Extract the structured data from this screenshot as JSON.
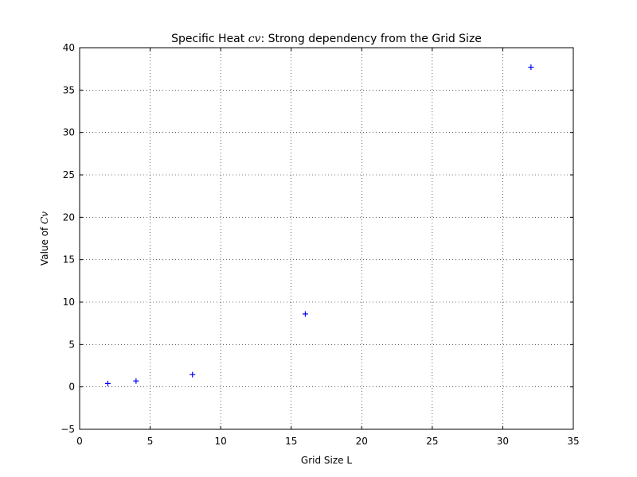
{
  "chart_data": {
    "type": "scatter",
    "title": {
      "prefix": "Specific Heat ",
      "math": "cv",
      "suffix": ": Strong dependency from the Grid Size"
    },
    "xlabel": "Grid Size L",
    "ylabel": {
      "prefix": "Value of ",
      "math": "Cv"
    },
    "xlim": [
      0,
      35
    ],
    "ylim": [
      -5,
      40
    ],
    "xticks": [
      0,
      5,
      10,
      15,
      20,
      25,
      30,
      35
    ],
    "yticks": [
      -5,
      0,
      5,
      10,
      15,
      20,
      25,
      30,
      35,
      40
    ],
    "grid": true,
    "marker": "+",
    "color": "#0000ff",
    "x": [
      2,
      4,
      8,
      16,
      32
    ],
    "y": [
      0.4,
      0.7,
      1.45,
      8.6,
      37.7
    ]
  }
}
